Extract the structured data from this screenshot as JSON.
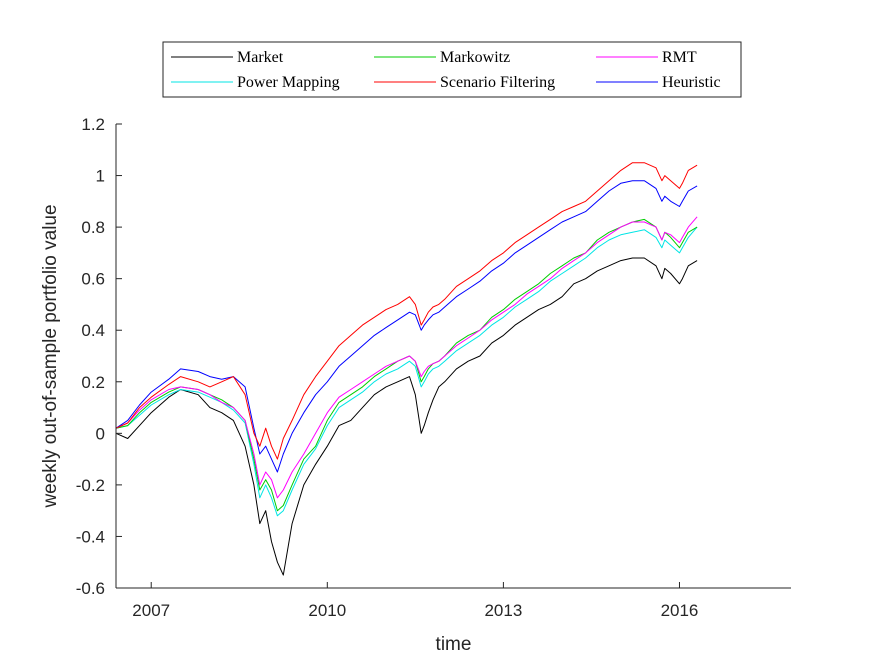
{
  "chart_data": {
    "type": "line",
    "title": "",
    "xlabel": "time",
    "ylabel": "weekly out-of-sample portfolio value",
    "xlim": [
      2006.4,
      2017.9
    ],
    "ylim": [
      -0.6,
      1.2
    ],
    "x_ticks": [
      {
        "value": 2007.0,
        "label": "2007"
      },
      {
        "value": 2010.0,
        "label": "2010"
      },
      {
        "value": 2013.0,
        "label": "2013"
      },
      {
        "value": 2016.0,
        "label": "2016"
      }
    ],
    "y_ticks": [
      {
        "value": -0.6,
        "label": "-0.6"
      },
      {
        "value": -0.4,
        "label": "-0.4"
      },
      {
        "value": -0.2,
        "label": "-0.2"
      },
      {
        "value": 0,
        "label": "0"
      },
      {
        "value": 0.2,
        "label": "0.2"
      },
      {
        "value": 0.4,
        "label": "0.4"
      },
      {
        "value": 0.6,
        "label": "0.6"
      },
      {
        "value": 0.8,
        "label": "0.8"
      },
      {
        "value": 1,
        "label": "1"
      },
      {
        "value": 1.2,
        "label": "1.2"
      }
    ],
    "grid": false,
    "legend_position": "top",
    "series": [
      {
        "name": "Market",
        "color": "#000000",
        "x": [
          2006.4,
          2006.6,
          2006.8,
          2007.0,
          2007.3,
          2007.5,
          2007.8,
          2008.0,
          2008.2,
          2008.4,
          2008.6,
          2008.75,
          2008.85,
          2008.95,
          2009.05,
          2009.15,
          2009.25,
          2009.4,
          2009.6,
          2009.8,
          2010.0,
          2010.2,
          2010.4,
          2010.6,
          2010.8,
          2011.0,
          2011.2,
          2011.4,
          2011.5,
          2011.6,
          2011.65,
          2011.72,
          2011.8,
          2011.9,
          2012.0,
          2012.2,
          2012.4,
          2012.6,
          2012.8,
          2013.0,
          2013.2,
          2013.4,
          2013.6,
          2013.8,
          2014.0,
          2014.2,
          2014.4,
          2014.6,
          2014.8,
          2015.0,
          2015.2,
          2015.4,
          2015.6,
          2015.7,
          2015.75,
          2015.85,
          2016.0,
          2016.05,
          2016.15,
          2016.3
        ],
        "y": [
          0.0,
          -0.02,
          0.03,
          0.08,
          0.14,
          0.17,
          0.15,
          0.1,
          0.08,
          0.05,
          -0.05,
          -0.2,
          -0.35,
          -0.3,
          -0.42,
          -0.5,
          -0.55,
          -0.35,
          -0.2,
          -0.12,
          -0.05,
          0.03,
          0.05,
          0.1,
          0.15,
          0.18,
          0.2,
          0.22,
          0.15,
          0.0,
          0.03,
          0.08,
          0.13,
          0.18,
          0.2,
          0.25,
          0.28,
          0.3,
          0.35,
          0.38,
          0.42,
          0.45,
          0.48,
          0.5,
          0.53,
          0.58,
          0.6,
          0.63,
          0.65,
          0.67,
          0.68,
          0.68,
          0.65,
          0.6,
          0.64,
          0.62,
          0.58,
          0.6,
          0.65,
          0.67
        ]
      },
      {
        "name": "Markowitz",
        "color": "#00cc00",
        "x": [
          2006.4,
          2006.6,
          2006.8,
          2007.0,
          2007.3,
          2007.5,
          2007.8,
          2008.0,
          2008.2,
          2008.4,
          2008.6,
          2008.75,
          2008.85,
          2008.95,
          2009.05,
          2009.15,
          2009.25,
          2009.4,
          2009.6,
          2009.8,
          2010.0,
          2010.2,
          2010.4,
          2010.6,
          2010.8,
          2011.0,
          2011.2,
          2011.4,
          2011.5,
          2011.6,
          2011.65,
          2011.72,
          2011.8,
          2011.9,
          2012.0,
          2012.2,
          2012.4,
          2012.6,
          2012.8,
          2013.0,
          2013.2,
          2013.4,
          2013.6,
          2013.8,
          2014.0,
          2014.2,
          2014.4,
          2014.6,
          2014.8,
          2015.0,
          2015.2,
          2015.4,
          2015.6,
          2015.7,
          2015.75,
          2015.85,
          2016.0,
          2016.05,
          2016.15,
          2016.3
        ],
        "y": [
          0.02,
          0.03,
          0.08,
          0.12,
          0.16,
          0.18,
          0.17,
          0.15,
          0.13,
          0.1,
          0.05,
          -0.1,
          -0.22,
          -0.18,
          -0.22,
          -0.3,
          -0.28,
          -0.2,
          -0.1,
          -0.05,
          0.05,
          0.12,
          0.15,
          0.18,
          0.22,
          0.25,
          0.28,
          0.3,
          0.28,
          0.2,
          0.22,
          0.25,
          0.27,
          0.28,
          0.3,
          0.35,
          0.38,
          0.4,
          0.45,
          0.48,
          0.52,
          0.55,
          0.58,
          0.62,
          0.65,
          0.68,
          0.7,
          0.75,
          0.78,
          0.8,
          0.82,
          0.83,
          0.8,
          0.75,
          0.78,
          0.76,
          0.72,
          0.74,
          0.78,
          0.8
        ]
      },
      {
        "name": "RMT",
        "color": "#ff00ff",
        "x": [
          2006.4,
          2006.6,
          2006.8,
          2007.0,
          2007.3,
          2007.5,
          2007.8,
          2008.0,
          2008.2,
          2008.4,
          2008.6,
          2008.75,
          2008.85,
          2008.95,
          2009.05,
          2009.15,
          2009.25,
          2009.4,
          2009.6,
          2009.8,
          2010.0,
          2010.2,
          2010.4,
          2010.6,
          2010.8,
          2011.0,
          2011.2,
          2011.4,
          2011.5,
          2011.6,
          2011.65,
          2011.72,
          2011.8,
          2011.9,
          2012.0,
          2012.2,
          2012.4,
          2012.6,
          2012.8,
          2013.0,
          2013.2,
          2013.4,
          2013.6,
          2013.8,
          2014.0,
          2014.2,
          2014.4,
          2014.6,
          2014.8,
          2015.0,
          2015.2,
          2015.4,
          2015.6,
          2015.7,
          2015.75,
          2015.85,
          2016.0,
          2016.05,
          2016.15,
          2016.3
        ],
        "y": [
          0.02,
          0.04,
          0.09,
          0.13,
          0.17,
          0.18,
          0.17,
          0.15,
          0.12,
          0.1,
          0.05,
          -0.08,
          -0.2,
          -0.15,
          -0.18,
          -0.25,
          -0.22,
          -0.15,
          -0.08,
          0.0,
          0.08,
          0.14,
          0.17,
          0.2,
          0.23,
          0.26,
          0.28,
          0.3,
          0.28,
          0.22,
          0.24,
          0.26,
          0.27,
          0.28,
          0.3,
          0.34,
          0.37,
          0.4,
          0.44,
          0.47,
          0.5,
          0.54,
          0.57,
          0.6,
          0.64,
          0.67,
          0.7,
          0.74,
          0.77,
          0.8,
          0.82,
          0.82,
          0.8,
          0.75,
          0.78,
          0.77,
          0.74,
          0.76,
          0.8,
          0.84
        ]
      },
      {
        "name": "Power Mapping",
        "color": "#00e5e5",
        "x": [
          2006.4,
          2006.6,
          2006.8,
          2007.0,
          2007.3,
          2007.5,
          2007.8,
          2008.0,
          2008.2,
          2008.4,
          2008.6,
          2008.75,
          2008.85,
          2008.95,
          2009.05,
          2009.15,
          2009.25,
          2009.4,
          2009.6,
          2009.8,
          2010.0,
          2010.2,
          2010.4,
          2010.6,
          2010.8,
          2011.0,
          2011.2,
          2011.4,
          2011.5,
          2011.6,
          2011.65,
          2011.72,
          2011.8,
          2011.9,
          2012.0,
          2012.2,
          2012.4,
          2012.6,
          2012.8,
          2013.0,
          2013.2,
          2013.4,
          2013.6,
          2013.8,
          2014.0,
          2014.2,
          2014.4,
          2014.6,
          2014.8,
          2015.0,
          2015.2,
          2015.4,
          2015.6,
          2015.7,
          2015.75,
          2015.85,
          2016.0,
          2016.05,
          2016.15,
          2016.3
        ],
        "y": [
          0.02,
          0.03,
          0.07,
          0.11,
          0.15,
          0.17,
          0.16,
          0.14,
          0.12,
          0.09,
          0.04,
          -0.12,
          -0.25,
          -0.2,
          -0.25,
          -0.32,
          -0.3,
          -0.22,
          -0.12,
          -0.06,
          0.03,
          0.1,
          0.13,
          0.16,
          0.2,
          0.23,
          0.25,
          0.28,
          0.26,
          0.18,
          0.2,
          0.23,
          0.25,
          0.26,
          0.28,
          0.32,
          0.35,
          0.38,
          0.42,
          0.45,
          0.49,
          0.52,
          0.55,
          0.59,
          0.62,
          0.65,
          0.68,
          0.72,
          0.75,
          0.77,
          0.78,
          0.79,
          0.76,
          0.72,
          0.75,
          0.73,
          0.7,
          0.72,
          0.76,
          0.8
        ]
      },
      {
        "name": "Scenario Filtering",
        "color": "#ff0000",
        "x": [
          2006.4,
          2006.6,
          2006.8,
          2007.0,
          2007.3,
          2007.5,
          2007.8,
          2008.0,
          2008.2,
          2008.4,
          2008.6,
          2008.75,
          2008.85,
          2008.95,
          2009.05,
          2009.15,
          2009.25,
          2009.4,
          2009.6,
          2009.8,
          2010.0,
          2010.2,
          2010.4,
          2010.6,
          2010.8,
          2011.0,
          2011.2,
          2011.4,
          2011.5,
          2011.6,
          2011.65,
          2011.72,
          2011.8,
          2011.9,
          2012.0,
          2012.2,
          2012.4,
          2012.6,
          2012.8,
          2013.0,
          2013.2,
          2013.4,
          2013.6,
          2013.8,
          2014.0,
          2014.2,
          2014.4,
          2014.6,
          2014.8,
          2015.0,
          2015.2,
          2015.4,
          2015.6,
          2015.7,
          2015.75,
          2015.85,
          2016.0,
          2016.05,
          2016.15,
          2016.3
        ],
        "y": [
          0.02,
          0.04,
          0.1,
          0.14,
          0.19,
          0.22,
          0.2,
          0.18,
          0.2,
          0.22,
          0.15,
          0.0,
          -0.05,
          0.02,
          -0.05,
          -0.1,
          -0.02,
          0.05,
          0.15,
          0.22,
          0.28,
          0.34,
          0.38,
          0.42,
          0.45,
          0.48,
          0.5,
          0.53,
          0.5,
          0.42,
          0.44,
          0.47,
          0.49,
          0.5,
          0.52,
          0.57,
          0.6,
          0.63,
          0.67,
          0.7,
          0.74,
          0.77,
          0.8,
          0.83,
          0.86,
          0.88,
          0.9,
          0.94,
          0.98,
          1.02,
          1.05,
          1.05,
          1.03,
          0.98,
          1.0,
          0.98,
          0.95,
          0.97,
          1.02,
          1.04
        ]
      },
      {
        "name": "Heuristic",
        "color": "#0000ff",
        "x": [
          2006.4,
          2006.6,
          2006.8,
          2007.0,
          2007.3,
          2007.5,
          2007.8,
          2008.0,
          2008.2,
          2008.4,
          2008.6,
          2008.75,
          2008.85,
          2008.95,
          2009.05,
          2009.15,
          2009.25,
          2009.4,
          2009.6,
          2009.8,
          2010.0,
          2010.2,
          2010.4,
          2010.6,
          2010.8,
          2011.0,
          2011.2,
          2011.4,
          2011.5,
          2011.6,
          2011.65,
          2011.72,
          2011.8,
          2011.9,
          2012.0,
          2012.2,
          2012.4,
          2012.6,
          2012.8,
          2013.0,
          2013.2,
          2013.4,
          2013.6,
          2013.8,
          2014.0,
          2014.2,
          2014.4,
          2014.6,
          2014.8,
          2015.0,
          2015.2,
          2015.4,
          2015.6,
          2015.7,
          2015.75,
          2015.85,
          2016.0,
          2016.05,
          2016.15,
          2016.3
        ],
        "y": [
          0.02,
          0.05,
          0.11,
          0.16,
          0.21,
          0.25,
          0.24,
          0.22,
          0.21,
          0.22,
          0.18,
          0.02,
          -0.08,
          -0.05,
          -0.1,
          -0.15,
          -0.08,
          0.0,
          0.08,
          0.15,
          0.2,
          0.26,
          0.3,
          0.34,
          0.38,
          0.41,
          0.44,
          0.47,
          0.46,
          0.4,
          0.42,
          0.44,
          0.46,
          0.47,
          0.49,
          0.53,
          0.56,
          0.59,
          0.63,
          0.66,
          0.7,
          0.73,
          0.76,
          0.79,
          0.82,
          0.84,
          0.86,
          0.9,
          0.94,
          0.97,
          0.98,
          0.98,
          0.95,
          0.9,
          0.92,
          0.9,
          0.88,
          0.9,
          0.94,
          0.96
        ]
      }
    ]
  }
}
